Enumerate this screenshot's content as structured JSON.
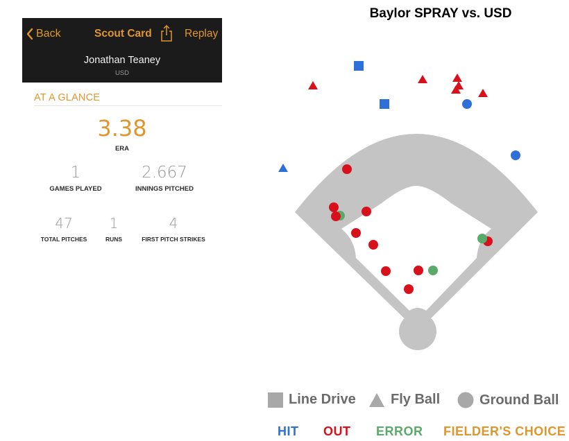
{
  "scout_card": {
    "nav": {
      "back_label": "Back",
      "title": "Scout Card",
      "replay_label": "Replay"
    },
    "player": {
      "name": "Jonathan Teaney",
      "team": "USD"
    },
    "section_title": "AT A GLANCE",
    "stats": {
      "era": {
        "value": "3.38",
        "label": "ERA"
      },
      "games_played": {
        "value": "1",
        "label": "GAMES PLAYED"
      },
      "innings_pitched": {
        "value": "2.667",
        "label": "INNINGS PITCHED"
      },
      "total_pitches": {
        "value": "47",
        "label": "TOTAL PITCHES"
      },
      "runs": {
        "value": "1",
        "label": "RUNS"
      },
      "first_pitch_strikes": {
        "value": "4",
        "label": "FIRST PITCH STRIKES"
      }
    },
    "accent_color": "#e0962e",
    "icons": [
      "chevron-left-icon",
      "share-icon"
    ]
  },
  "spray_chart": {
    "title": "Baylor SPRAY vs. USD",
    "legend": {
      "shapes": [
        {
          "shape": "square",
          "label": "Line Drive"
        },
        {
          "shape": "triangle",
          "label": "Fly Ball"
        },
        {
          "shape": "circle",
          "label": "Ground Ball"
        }
      ],
      "outcomes": [
        {
          "key": "hit",
          "label": "HIT",
          "color": "#2f6fd8"
        },
        {
          "key": "out",
          "label": "OUT",
          "color": "#d8101c"
        },
        {
          "key": "error",
          "label": "ERROR",
          "color": "#5aab6a"
        },
        {
          "key": "fc",
          "label": "FIELDER'S CHOICE",
          "color": "#e0962e"
        }
      ]
    },
    "field_color": "#c4c4c4"
  }
}
